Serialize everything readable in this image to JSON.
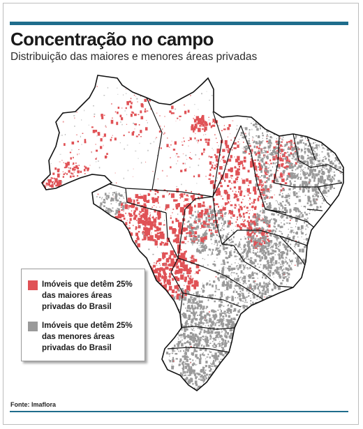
{
  "title": "Concentração no campo",
  "subtitle": "Distribuição das maiores e menores áreas privadas",
  "legend": {
    "items": [
      {
        "label": "Imóveis que detêm 25% das maiores áreas privadas do Brasil",
        "color": "#e05256"
      },
      {
        "label": "Imóveis que detêm 25% das menores áreas privadas do Brasil",
        "color": "#9a9a9a"
      }
    ]
  },
  "source": "Fonte: Imaflora",
  "colors": {
    "accent_rule": "#1f6d8c",
    "largest": "#e05256",
    "smallest": "#9a9a9a",
    "state_border": "#111111"
  }
}
